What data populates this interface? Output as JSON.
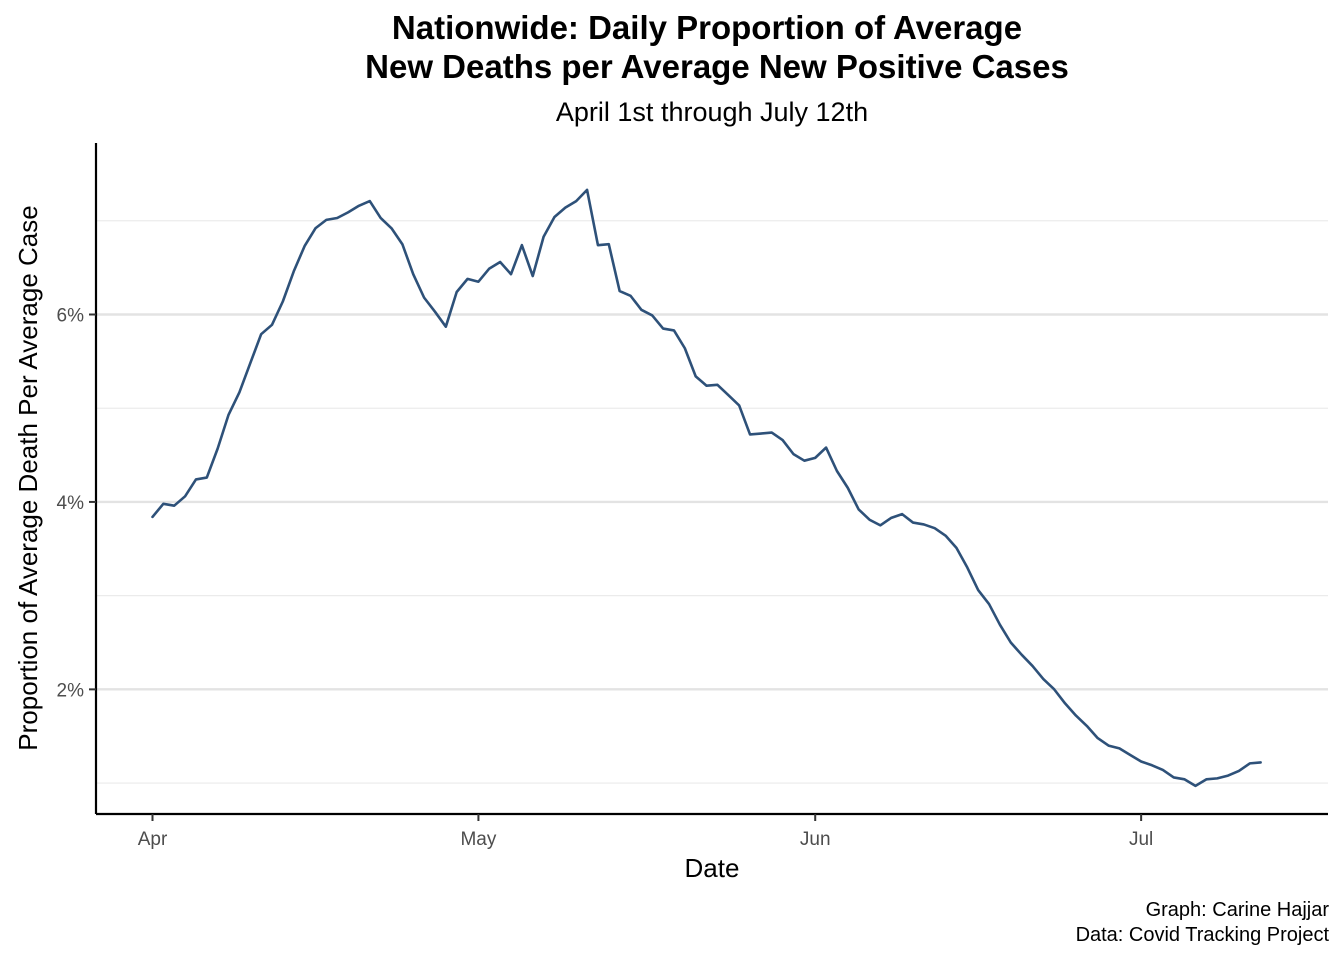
{
  "chart_data": {
    "type": "line",
    "title_lines": [
      "Nationwide: Daily Proportion of Average",
      "New Deaths per Average New Positive Cases"
    ],
    "subtitle": "April 1st through July 12th",
    "xlabel": "Date",
    "ylabel": "Proportion of Average Death Per Average Case",
    "caption_lines": [
      "Graph: Carine Hajjar",
      "Data: Covid Tracking Project"
    ],
    "x_start_day": 0,
    "x_range": [
      -5.2,
      108.2
    ],
    "x_ticks": [
      {
        "day": 0,
        "label": "Apr"
      },
      {
        "day": 30,
        "label": "May"
      },
      {
        "day": 61,
        "label": "Jun"
      },
      {
        "day": 91,
        "label": "Jul"
      }
    ],
    "ylim": [
      0.67,
      7.83
    ],
    "y_ticks": [
      {
        "value": 2,
        "label": "2%"
      },
      {
        "value": 4,
        "label": "4%"
      },
      {
        "value": 6,
        "label": "6%"
      }
    ],
    "y_minor_grid": [
      1,
      3,
      5,
      7
    ],
    "series": [
      {
        "name": "Proportion of Average Death Per Average Case",
        "color": "#2e5179",
        "values": [
          3.84,
          3.98,
          3.96,
          4.06,
          4.24,
          4.26,
          4.57,
          4.93,
          5.17,
          5.48,
          5.79,
          5.89,
          6.14,
          6.46,
          6.73,
          6.92,
          7.01,
          7.03,
          7.09,
          7.16,
          7.21,
          7.03,
          6.92,
          6.75,
          6.43,
          6.18,
          6.03,
          5.87,
          6.24,
          6.38,
          6.35,
          6.49,
          6.56,
          6.43,
          6.74,
          6.41,
          6.83,
          7.04,
          7.14,
          7.21,
          7.33,
          6.74,
          6.75,
          6.25,
          6.2,
          6.05,
          5.99,
          5.85,
          5.83,
          5.64,
          5.34,
          5.24,
          5.25,
          5.14,
          5.03,
          4.72,
          4.73,
          4.74,
          4.66,
          4.51,
          4.44,
          4.47,
          4.58,
          4.33,
          4.15,
          3.92,
          3.81,
          3.75,
          3.83,
          3.87,
          3.78,
          3.76,
          3.72,
          3.64,
          3.51,
          3.3,
          3.06,
          2.91,
          2.69,
          2.5,
          2.37,
          2.25,
          2.11,
          2.0,
          1.85,
          1.72,
          1.61,
          1.48,
          1.4,
          1.37,
          1.3,
          1.23,
          1.19,
          1.14,
          1.06,
          1.04,
          0.97,
          1.04,
          1.05,
          1.08,
          1.13,
          1.21,
          1.22
        ]
      }
    ]
  }
}
